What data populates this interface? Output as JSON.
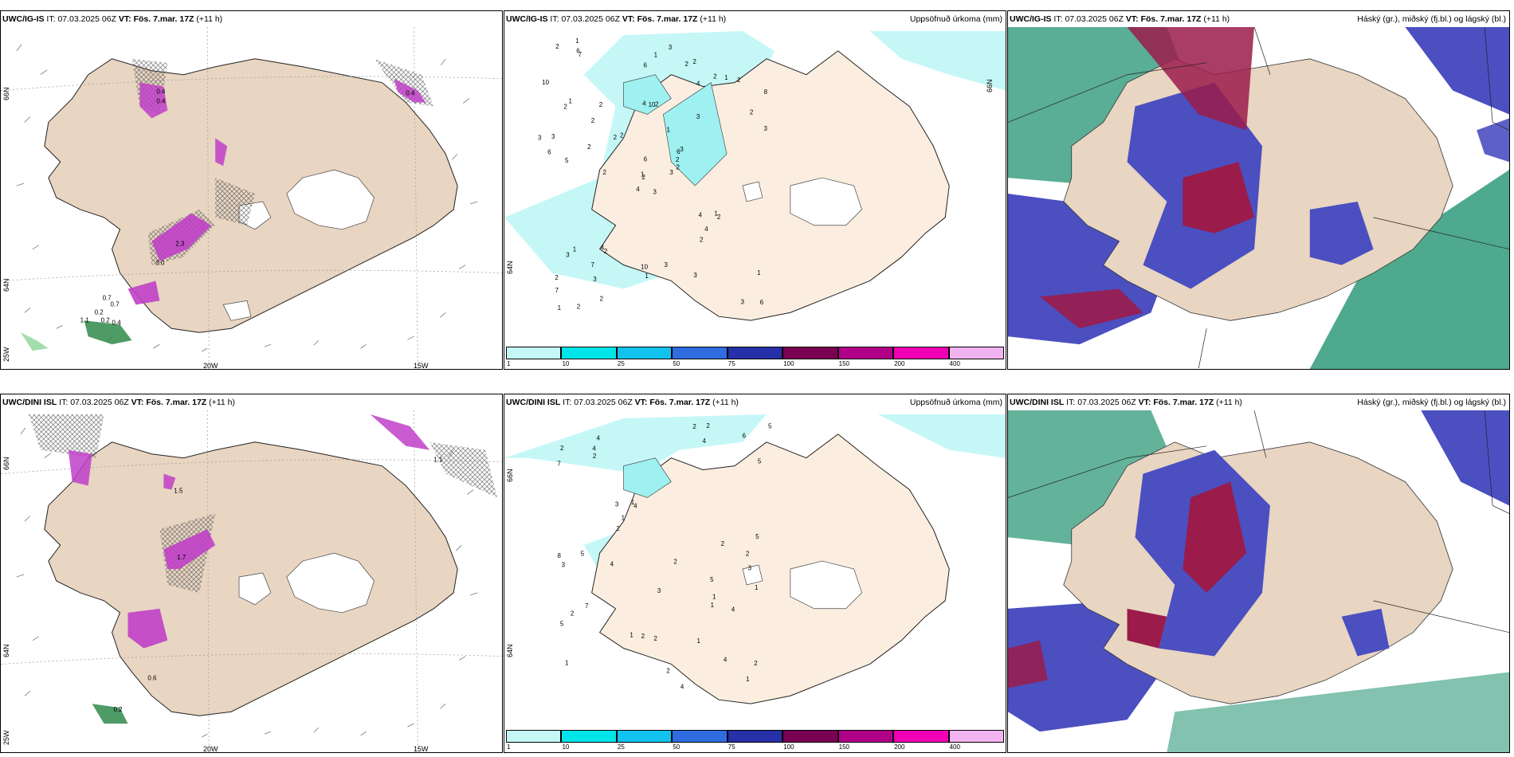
{
  "rows": [
    {
      "wind": {
        "model": "UWC/IG-IS",
        "it_label": "IT:",
        "it": "07.03.2025 06Z",
        "vt_label": "VT:",
        "vt": "Fös. 7.mar. 17Z",
        "lead": "(+11 h)",
        "lat66": "66N",
        "lat64": "64N",
        "lon25": "25W",
        "lon20": "20W",
        "lon15": "15W",
        "values": [
          "0.4",
          "0.4",
          "0.4",
          "3.0",
          "2.3",
          "0.7",
          "0.7",
          "1.1",
          "0.2",
          "0.2",
          "0.4"
        ]
      },
      "precip": {
        "model": "UWC/IG-IS",
        "it_label": "IT:",
        "it": "07.03.2025 06Z",
        "vt_label": "VT:",
        "vt": "Fös. 7.mar. 17Z",
        "lead": "(+11 h)",
        "title": "Uppsöfnuð úrkoma (mm)",
        "lat66": "66N",
        "lat64": "64N",
        "values": [
          "3",
          "2",
          "2",
          "2",
          "6",
          "2",
          "2",
          "2",
          "4",
          "3",
          "7",
          "6",
          "5",
          "8",
          "4",
          "3",
          "2",
          "4",
          "1",
          "1",
          "2",
          "7",
          "3",
          "10",
          "3",
          "2",
          "1",
          "6",
          "6",
          "4",
          "3",
          "1",
          "10",
          "6",
          "2",
          "2",
          "4",
          "3",
          "1",
          "1",
          "3",
          "2",
          "2",
          "2",
          "2",
          "3",
          "2",
          "1",
          "1",
          "2",
          "3",
          "2",
          "10",
          "4",
          "3",
          "7",
          "6",
          "2",
          "3",
          "2",
          "1",
          "2",
          "3",
          "2",
          "1",
          "1",
          "2"
        ]
      },
      "cloud": {
        "model": "UWC/IG-IS",
        "it_label": "IT:",
        "it": "07.03.2025 06Z",
        "vt_label": "VT:",
        "vt": "Fös. 7.mar. 17Z",
        "lead": "(+11 h)",
        "title": "Háský (gr.), miðský (fj.bl.) og lágský (bl.)"
      }
    },
    {
      "wind": {
        "model": "UWC/DINI ISL",
        "it_label": "IT:",
        "it": "07.03.2025 06Z",
        "vt_label": "VT:",
        "vt": "Fös. 7.mar. 17Z",
        "lead": "(+11 h)",
        "lat66": "66N",
        "lat64": "64N",
        "lon25": "25W",
        "lon20": "20W",
        "lon15": "15W",
        "values": [
          "1.5",
          "1.1",
          "1.7",
          "0.6",
          "0.2"
        ]
      },
      "precip": {
        "model": "UWC/DINI ISL",
        "it_label": "IT:",
        "it": "07.03.2025 06Z",
        "vt_label": "VT:",
        "vt": "Fös. 7.mar. 17Z",
        "lead": "(+11 h)",
        "title": "Uppsöfnuð úrkoma (mm)",
        "lat66": "66N",
        "lat64": "64N",
        "values": [
          "5",
          "3",
          "1",
          "4",
          "4",
          "4",
          "5",
          "4",
          "3",
          "4",
          "7",
          "8",
          "2",
          "2",
          "1",
          "5",
          "3",
          "2",
          "1",
          "7",
          "5",
          "6",
          "2",
          "1",
          "2",
          "4",
          "1",
          "3",
          "2",
          "2",
          "2",
          "1",
          "1",
          "4",
          "2",
          "4",
          "1",
          "5",
          "2",
          "2",
          "5",
          "2",
          "1",
          "2"
        ]
      },
      "cloud": {
        "model": "UWC/DINI ISL",
        "it_label": "IT:",
        "it": "07.03.2025 06Z",
        "vt_label": "VT:",
        "vt": "Fös. 7.mar. 17Z",
        "lead": "(+11 h)",
        "title": "Háský (gr.), miðský (fj.bl.) og lágský (bl.)"
      }
    }
  ],
  "colorbar": {
    "ticks": [
      "1",
      "10",
      "25",
      "50",
      "75",
      "100",
      "150",
      "200",
      "400"
    ],
    "colors": [
      "#c6f7f7",
      "#00e5ea",
      "#12c3ef",
      "#2f6ce0",
      "#2630a8",
      "#7a0052",
      "#b00087",
      "#f000b4",
      "#f2b4f0"
    ]
  },
  "palette": {
    "land": "#e8d5c2",
    "land_precip": "#fbeee0",
    "high_cloud": "#2f9a7a",
    "mid_cloud": "#4b4fc0",
    "low_cloud": "#9b1b4a",
    "accent_purple": "#c040c8"
  }
}
